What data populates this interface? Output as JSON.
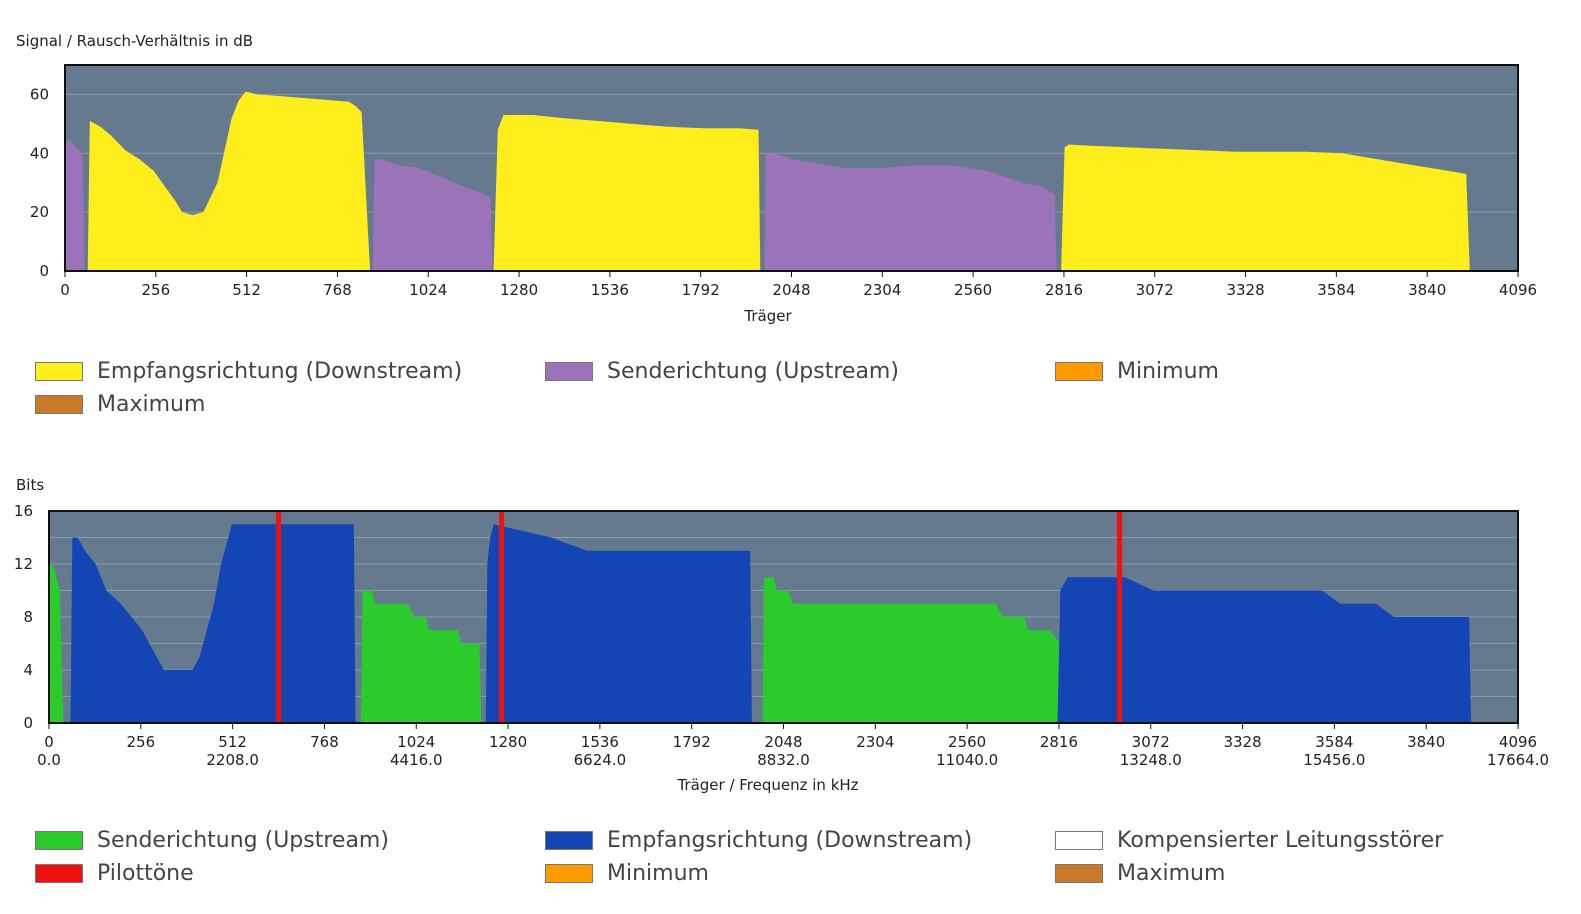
{
  "colors": {
    "plot_bg": "#657a8f",
    "grid": "#8a9bab",
    "snr_downstream": "#ffed1c",
    "snr_upstream": "#9a73b9",
    "bits_upstream": "#2acb2a",
    "bits_downstream": "#1346b4",
    "pilot": "#ee1111",
    "minimum": "#ff9a00",
    "maximum": "#c87a28",
    "compensated": "#ffffff"
  },
  "chart_data": [
    {
      "type": "area",
      "title": "Signal / Rausch-Verhältnis in dB",
      "xlabel": "Träger",
      "ylabel": "Signal / Rausch-Verhältnis in dB",
      "xlim": [
        0,
        4096
      ],
      "ylim": [
        0,
        70
      ],
      "xticks": [
        "0",
        "256",
        "512",
        "768",
        "1024",
        "1280",
        "1536",
        "1792",
        "2048",
        "2304",
        "2560",
        "2816",
        "3072",
        "3328",
        "3584",
        "3840",
        "4096"
      ],
      "yticks": [
        "0",
        "20",
        "40",
        "60"
      ],
      "grid": true,
      "series": [
        {
          "name": "Empfangsrichtung (Downstream)",
          "color_key": "snr_downstream",
          "segments": [
            [
              [
                64,
                0
              ],
              [
                70,
                51
              ],
              [
                100,
                49
              ],
              [
                130,
                46
              ],
              [
                170,
                41
              ],
              [
                210,
                38
              ],
              [
                250,
                34
              ],
              [
                280,
                29
              ],
              [
                310,
                24
              ],
              [
                330,
                20
              ],
              [
                360,
                19
              ],
              [
                390,
                20
              ],
              [
                430,
                30
              ],
              [
                450,
                41
              ],
              [
                470,
                52
              ],
              [
                490,
                58
              ],
              [
                510,
                61
              ],
              [
                540,
                60
              ],
              [
                600,
                59.5
              ],
              [
                650,
                59
              ],
              [
                700,
                58.5
              ],
              [
                750,
                58
              ],
              [
                800,
                57.5
              ],
              [
                820,
                56
              ],
              [
                836,
                54
              ],
              [
                860,
                0
              ]
            ],
            [
              [
                1208,
                0
              ],
              [
                1220,
                48
              ],
              [
                1236,
                53
              ],
              [
                1320,
                53
              ],
              [
                1400,
                52
              ],
              [
                1500,
                51
              ],
              [
                1600,
                50
              ],
              [
                1700,
                49
              ],
              [
                1800,
                48.5
              ],
              [
                1900,
                48.5
              ],
              [
                1955,
                48
              ],
              [
                1960,
                0
              ]
            ],
            [
              [
                2808,
                0
              ],
              [
                2818,
                42
              ],
              [
                2830,
                43
              ],
              [
                2900,
                42.5
              ],
              [
                3000,
                42
              ],
              [
                3100,
                41.5
              ],
              [
                3200,
                41
              ],
              [
                3300,
                40.5
              ],
              [
                3400,
                40.5
              ],
              [
                3500,
                40.5
              ],
              [
                3600,
                40
              ],
              [
                3700,
                38
              ],
              [
                3800,
                36
              ],
              [
                3900,
                34
              ],
              [
                3950,
                33
              ],
              [
                3960,
                0
              ]
            ]
          ]
        },
        {
          "name": "Senderichtung (Upstream)",
          "color_key": "snr_upstream",
          "segments": [
            [
              [
                0,
                0
              ],
              [
                2,
                43
              ],
              [
                10,
                45
              ],
              [
                30,
                42
              ],
              [
                50,
                40
              ],
              [
                55,
                0
              ]
            ],
            [
              [
                868,
                0
              ],
              [
                872,
                38
              ],
              [
                890,
                38
              ],
              [
                940,
                36
              ],
              [
                1000,
                35
              ],
              [
                1040,
                33
              ],
              [
                1080,
                31
              ],
              [
                1120,
                29
              ],
              [
                1160,
                27
              ],
              [
                1200,
                25
              ],
              [
                1205,
                0
              ]
            ],
            [
              [
                1972,
                0
              ],
              [
                1975,
                40
              ],
              [
                2000,
                40
              ],
              [
                2050,
                38
              ],
              [
                2100,
                37
              ],
              [
                2200,
                35
              ],
              [
                2300,
                35
              ],
              [
                2400,
                36
              ],
              [
                2500,
                36
              ],
              [
                2600,
                34
              ],
              [
                2700,
                30
              ],
              [
                2750,
                29
              ],
              [
                2790,
                26
              ],
              [
                2795,
                0
              ]
            ]
          ]
        },
        {
          "name": "Minimum",
          "color_key": "minimum",
          "segments": []
        },
        {
          "name": "Maximum",
          "color_key": "maximum",
          "segments": []
        }
      ]
    },
    {
      "type": "area",
      "title": "Bits",
      "xlabel": "Träger / Frequenz in kHz",
      "ylabel": "Bits",
      "xlim": [
        0,
        4096
      ],
      "ylim": [
        0,
        16
      ],
      "xticks": [
        "0",
        "256",
        "512",
        "768",
        "1024",
        "1280",
        "1536",
        "1792",
        "2048",
        "2304",
        "2560",
        "2816",
        "3072",
        "3328",
        "3584",
        "3840",
        "4096"
      ],
      "xticks_freq": [
        "0.0",
        "2208.0",
        "4416.0",
        "6624.0",
        "8832.0",
        "11040.0",
        "13248.0",
        "15456.0",
        "17664.0"
      ],
      "yticks": [
        "0",
        "4",
        "8",
        "12",
        "16"
      ],
      "grid": true,
      "series": [
        {
          "name": "Senderichtung (Upstream)",
          "color_key": "bits_upstream",
          "segments": [
            [
              [
                0,
                0
              ],
              [
                2,
                12
              ],
              [
                10,
                12
              ],
              [
                20,
                11
              ],
              [
                30,
                10
              ],
              [
                40,
                0
              ]
            ],
            [
              [
                870,
                0
              ],
              [
                874,
                10
              ],
              [
                900,
                10
              ],
              [
                910,
                9
              ],
              [
                1000,
                9
              ],
              [
                1020,
                8
              ],
              [
                1050,
                8
              ],
              [
                1060,
                7
              ],
              [
                1140,
                7
              ],
              [
                1150,
                6
              ],
              [
                1200,
                6
              ],
              [
                1205,
                0
              ]
            ],
            [
              [
                1990,
                0
              ],
              [
                1993,
                11
              ],
              [
                2020,
                11
              ],
              [
                2030,
                10
              ],
              [
                2060,
                10
              ],
              [
                2075,
                9
              ],
              [
                2200,
                9
              ],
              [
                2300,
                9
              ],
              [
                2400,
                9
              ],
              [
                2470,
                9
              ],
              [
                2485,
                9
              ],
              [
                2520,
                9
              ],
              [
                2640,
                9
              ],
              [
                2660,
                8
              ],
              [
                2720,
                8
              ],
              [
                2730,
                7
              ],
              [
                2790,
                7
              ],
              [
                2820,
                6
              ],
              [
                2825,
                0
              ]
            ]
          ]
        },
        {
          "name": "Empfangsrichtung (Downstream)",
          "color_key": "bits_downstream",
          "segments": [
            [
              [
                60,
                0
              ],
              [
                65,
                14
              ],
              [
                80,
                14
              ],
              [
                100,
                13
              ],
              [
                130,
                12
              ],
              [
                160,
                10
              ],
              [
                200,
                9
              ],
              [
                230,
                8
              ],
              [
                260,
                7
              ],
              [
                280,
                6
              ],
              [
                300,
                5
              ],
              [
                320,
                4
              ],
              [
                400,
                4
              ],
              [
                420,
                5
              ],
              [
                440,
                7
              ],
              [
                460,
                9
              ],
              [
                480,
                12
              ],
              [
                500,
                14
              ],
              [
                510,
                15
              ],
              [
                520,
                15
              ],
              [
                850,
                15
              ],
              [
                855,
                0
              ]
            ],
            [
              [
                1218,
                0
              ],
              [
                1222,
                12
              ],
              [
                1230,
                14
              ],
              [
                1240,
                15
              ],
              [
                1400,
                14
              ],
              [
                1500,
                13
              ],
              [
                1700,
                13
              ],
              [
                1800,
                13
              ],
              [
                1900,
                13
              ],
              [
                1955,
                13
              ],
              [
                1960,
                0
              ]
            ],
            [
              [
                2812,
                0
              ],
              [
                2820,
                10
              ],
              [
                2840,
                11
              ],
              [
                2900,
                11
              ],
              [
                3000,
                11
              ],
              [
                3080,
                10
              ],
              [
                3200,
                10
              ],
              [
                3400,
                10
              ],
              [
                3550,
                10
              ],
              [
                3600,
                9
              ],
              [
                3700,
                9
              ],
              [
                3750,
                8
              ],
              [
                3900,
                8
              ],
              [
                3960,
                8
              ],
              [
                3965,
                0
              ]
            ]
          ]
        },
        {
          "name": "Pilottöne",
          "color_key": "pilot",
          "carriers": [
            640,
            1262,
            2985
          ]
        },
        {
          "name": "Kompensierter Leitungsstörer",
          "color_key": "compensated",
          "segments": []
        },
        {
          "name": "Minimum",
          "color_key": "minimum",
          "segments": []
        },
        {
          "name": "Maximum",
          "color_key": "maximum",
          "segments": []
        }
      ]
    }
  ],
  "legend_top": {
    "items": [
      {
        "label": "Empfangsrichtung (Downstream)",
        "color_key": "snr_downstream"
      },
      {
        "label": "Senderichtung (Upstream)",
        "color_key": "snr_upstream"
      },
      {
        "label": "Minimum",
        "color_key": "minimum"
      },
      {
        "label": "Maximum",
        "color_key": "maximum"
      }
    ]
  },
  "legend_bottom": {
    "items": [
      {
        "label": "Senderichtung (Upstream)",
        "color_key": "bits_upstream"
      },
      {
        "label": "Empfangsrichtung (Downstream)",
        "color_key": "bits_downstream"
      },
      {
        "label": "Kompensierter Leitungsstörer",
        "color_key": "compensated"
      },
      {
        "label": "Pilottöne",
        "color_key": "pilot"
      },
      {
        "label": "Minimum",
        "color_key": "minimum"
      },
      {
        "label": "Maximum",
        "color_key": "maximum"
      }
    ]
  }
}
